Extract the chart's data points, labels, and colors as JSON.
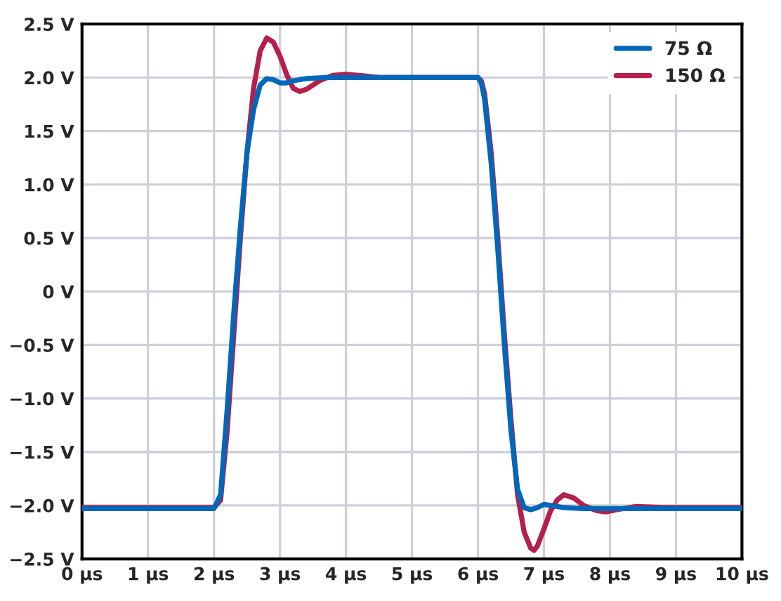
{
  "chart_data": {
    "type": "line",
    "xlim": [
      0,
      10
    ],
    "ylim": [
      -2.5,
      2.5
    ],
    "xticks": [
      {
        "value": 0,
        "label": "0 µs"
      },
      {
        "value": 1,
        "label": "1 µs"
      },
      {
        "value": 2,
        "label": "2 µs"
      },
      {
        "value": 3,
        "label": "3 µs"
      },
      {
        "value": 4,
        "label": "4 µs"
      },
      {
        "value": 5,
        "label": "5 µs"
      },
      {
        "value": 6,
        "label": "6 µs"
      },
      {
        "value": 7,
        "label": "7 µs"
      },
      {
        "value": 8,
        "label": "8 µs"
      },
      {
        "value": 9,
        "label": "9 µs"
      },
      {
        "value": 10,
        "label": "10 µs"
      }
    ],
    "yticks": [
      {
        "value": -2.5,
        "label": "−2.5 V"
      },
      {
        "value": -2.0,
        "label": "−2.0 V"
      },
      {
        "value": -1.5,
        "label": "−1.5 V"
      },
      {
        "value": -1.0,
        "label": "−1.0 V"
      },
      {
        "value": -0.5,
        "label": "−0.5 V"
      },
      {
        "value": 0,
        "label": "0 V"
      },
      {
        "value": 0.5,
        "label": "0.5 V"
      },
      {
        "value": 1.0,
        "label": "1.0 V"
      },
      {
        "value": 1.5,
        "label": "1.5 V"
      },
      {
        "value": 2.0,
        "label": "2.0 V"
      },
      {
        "value": 2.5,
        "label": "2.5 V"
      }
    ],
    "grid": true,
    "legend": "top right",
    "line_style": "solid",
    "marker": "none",
    "series": [
      {
        "name": "75 Ω",
        "color": "#0067b9",
        "x": [
          0,
          1,
          2.0,
          2.1,
          2.2,
          2.3,
          2.4,
          2.5,
          2.6,
          2.7,
          2.8,
          2.9,
          3.0,
          3.1,
          3.2,
          3.4,
          3.7,
          4,
          5,
          6.0,
          6.05,
          6.1,
          6.2,
          6.3,
          6.4,
          6.5,
          6.6,
          6.7,
          6.8,
          6.9,
          7.0,
          7.1,
          7.3,
          7.6,
          8,
          9,
          10
        ],
        "values": [
          -2.03,
          -2.03,
          -2.03,
          -1.9,
          -1.1,
          -0.2,
          0.6,
          1.3,
          1.7,
          1.93,
          1.99,
          1.98,
          1.95,
          1.95,
          1.97,
          1.99,
          2.0,
          2.0,
          2.0,
          2.0,
          1.95,
          1.8,
          1.2,
          0.4,
          -0.5,
          -1.3,
          -1.85,
          -2.02,
          -2.04,
          -2.02,
          -1.99,
          -2.0,
          -2.02,
          -2.03,
          -2.03,
          -2.03,
          -2.03
        ]
      },
      {
        "name": "150 Ω",
        "color": "#b41f4b",
        "x": [
          0,
          1,
          2.0,
          2.1,
          2.2,
          2.3,
          2.4,
          2.5,
          2.6,
          2.7,
          2.8,
          2.9,
          3.0,
          3.1,
          3.2,
          3.3,
          3.4,
          3.6,
          3.8,
          4.0,
          4.2,
          4.5,
          5,
          6.0,
          6.05,
          6.1,
          6.2,
          6.3,
          6.4,
          6.5,
          6.6,
          6.7,
          6.8,
          6.85,
          6.9,
          7.0,
          7.1,
          7.2,
          7.3,
          7.45,
          7.6,
          7.8,
          7.95,
          8.1,
          8.4,
          8.8,
          9.5,
          10
        ],
        "values": [
          -2.02,
          -2.02,
          -2.02,
          -1.95,
          -1.3,
          -0.4,
          0.5,
          1.3,
          1.9,
          2.25,
          2.37,
          2.33,
          2.2,
          2.03,
          1.9,
          1.87,
          1.89,
          1.97,
          2.02,
          2.03,
          2.02,
          2.0,
          2.0,
          2.0,
          1.97,
          1.85,
          1.3,
          0.5,
          -0.4,
          -1.2,
          -1.9,
          -2.25,
          -2.4,
          -2.42,
          -2.38,
          -2.22,
          -2.05,
          -1.95,
          -1.9,
          -1.93,
          -2.0,
          -2.05,
          -2.06,
          -2.04,
          -2.01,
          -2.02,
          -2.02,
          -2.02
        ]
      }
    ]
  }
}
